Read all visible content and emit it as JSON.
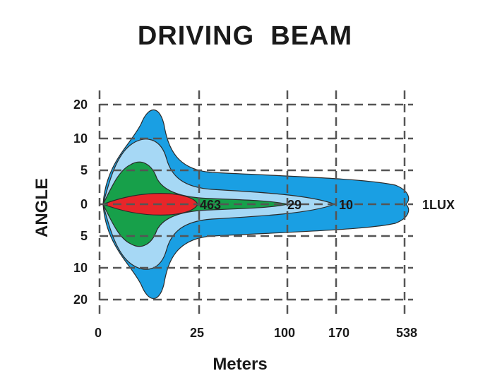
{
  "chart_data": {
    "type": "area",
    "title": "DRIVING  BEAM",
    "xlabel": "Meters",
    "ylabel": "ANGLE",
    "x_ticks": [
      "0",
      "25",
      "100",
      "170",
      "538"
    ],
    "y_ticks": [
      "20",
      "10",
      "5",
      "0",
      "5",
      "10",
      "20"
    ],
    "grid": true,
    "colors": {
      "outer": "#1a9fe3",
      "light": "#a6d8f5",
      "green": "#17a04a",
      "red": "#e8262a",
      "grid": "#555555",
      "stroke": "#2b2b2b"
    },
    "series": [
      {
        "name": "1LUX",
        "reach": 538,
        "color": "outer"
      },
      {
        "name": "10",
        "reach": 170,
        "color": "light"
      },
      {
        "name": "29",
        "reach": 100,
        "color": "green"
      },
      {
        "name": "463",
        "reach": 25,
        "color": "red"
      }
    ]
  }
}
